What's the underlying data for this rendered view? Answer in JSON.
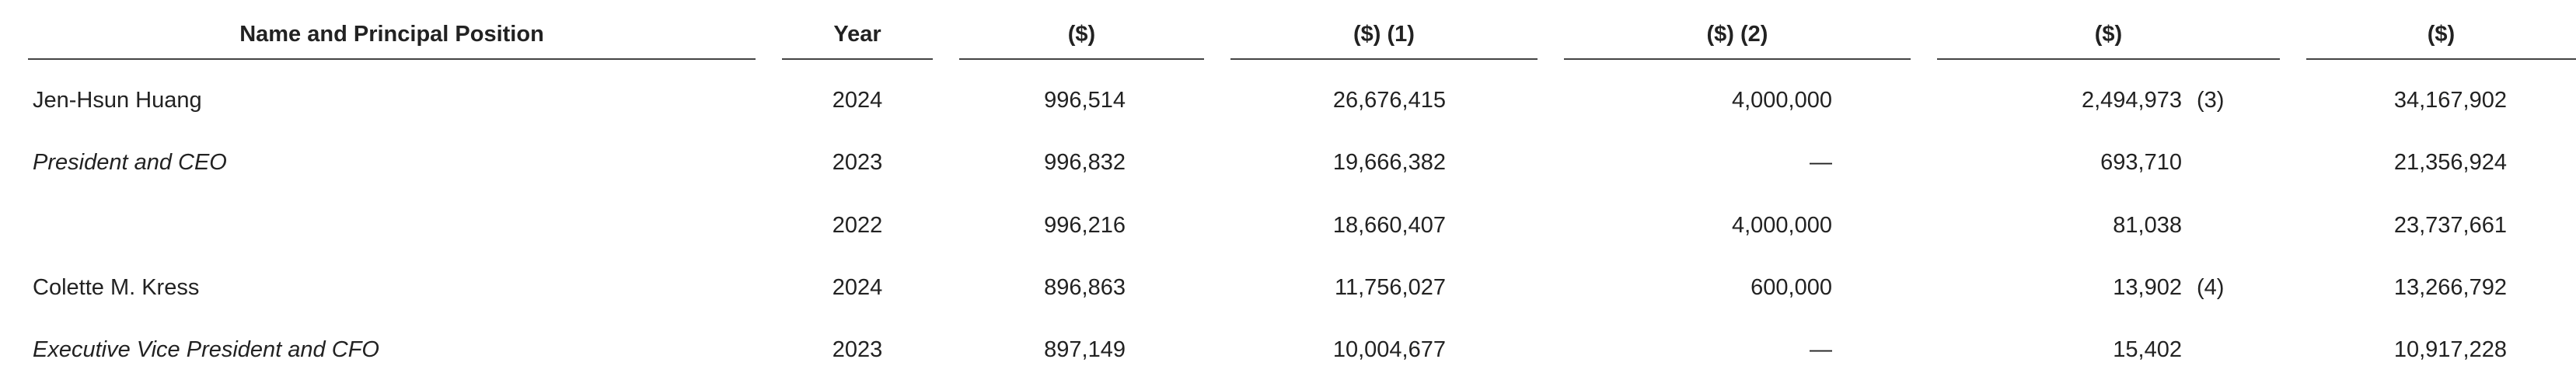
{
  "table": {
    "header": [
      "Name and Principal Position",
      "Year",
      "($)",
      "($) (1)",
      "($) (2)",
      "($)",
      "($)"
    ],
    "rows": [
      {
        "label": "Jen-Hsun Huang",
        "label_style": "normal",
        "year": "2024",
        "cells": [
          "996,514",
          "26,676,415",
          "4,000,000",
          "2,494,973",
          "34,167,902"
        ],
        "footnote": "(3)"
      },
      {
        "label": "President and CEO",
        "label_style": "italic",
        "year": "2023",
        "cells": [
          "996,832",
          "19,666,382",
          "—",
          "693,710",
          "21,356,924"
        ],
        "footnote": null
      },
      {
        "label": null,
        "label_style": "normal",
        "year": "2022",
        "cells": [
          "996,216",
          "18,660,407",
          "4,000,000",
          "81,038",
          "23,737,661"
        ],
        "footnote": null
      },
      {
        "label": "Colette M. Kress",
        "label_style": "normal",
        "year": "2024",
        "cells": [
          "896,863",
          "11,756,027",
          "600,000",
          "13,902",
          "13,266,792"
        ],
        "footnote": "(4)"
      },
      {
        "label": "Executive Vice President and CFO",
        "label_style": "italic",
        "year": "2023",
        "cells": [
          "897,149",
          "10,004,677",
          "—",
          "15,402",
          "10,917,228"
        ],
        "footnote": null
      }
    ]
  }
}
